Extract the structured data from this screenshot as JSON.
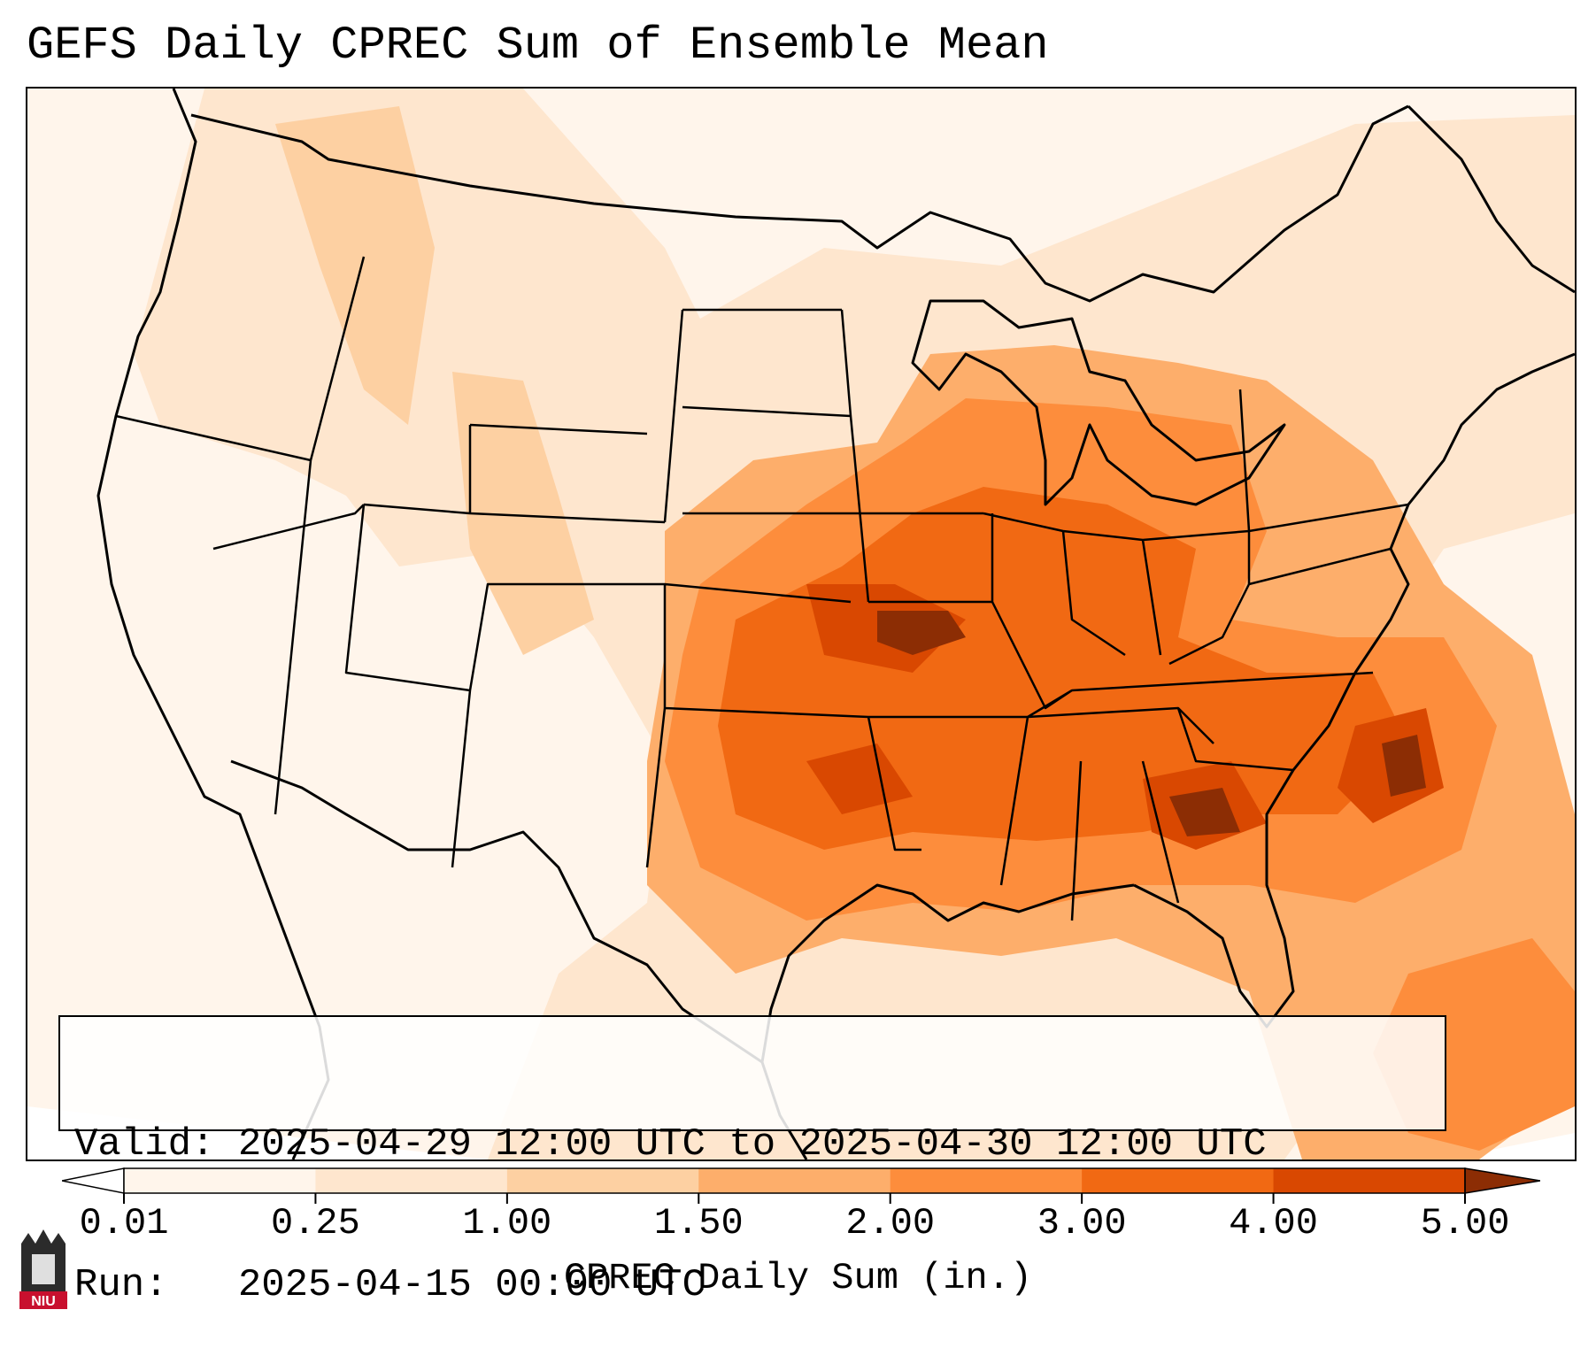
{
  "title": "GEFS Daily CPREC Sum of Ensemble Mean",
  "info": {
    "valid_label": "Valid:",
    "valid_value": "2025-04-29 12:00 UTC to 2025-04-30 12:00 UTC",
    "run_label": "Run:",
    "run_value": "2025-04-15 00:00 UTC"
  },
  "colorbar": {
    "label": "CPREC Daily Sum (in.)",
    "ticks": [
      "0.01",
      "0.25",
      "1.00",
      "1.50",
      "2.00",
      "3.00",
      "4.00",
      "5.00"
    ],
    "colors": [
      "#fff5eb",
      "#fee6ce",
      "#fdd0a2",
      "#fdae6b",
      "#fd8d3c",
      "#f16913",
      "#d94801",
      "#8c2d04"
    ],
    "extend": "both"
  },
  "map": {
    "projection": "Lambert conformal",
    "region": "Continental United States",
    "borders": [
      "states",
      "countries",
      "coastlines"
    ]
  },
  "logo": {
    "name": "niu-logo",
    "text": "NIU",
    "color": "#c8102e"
  }
}
